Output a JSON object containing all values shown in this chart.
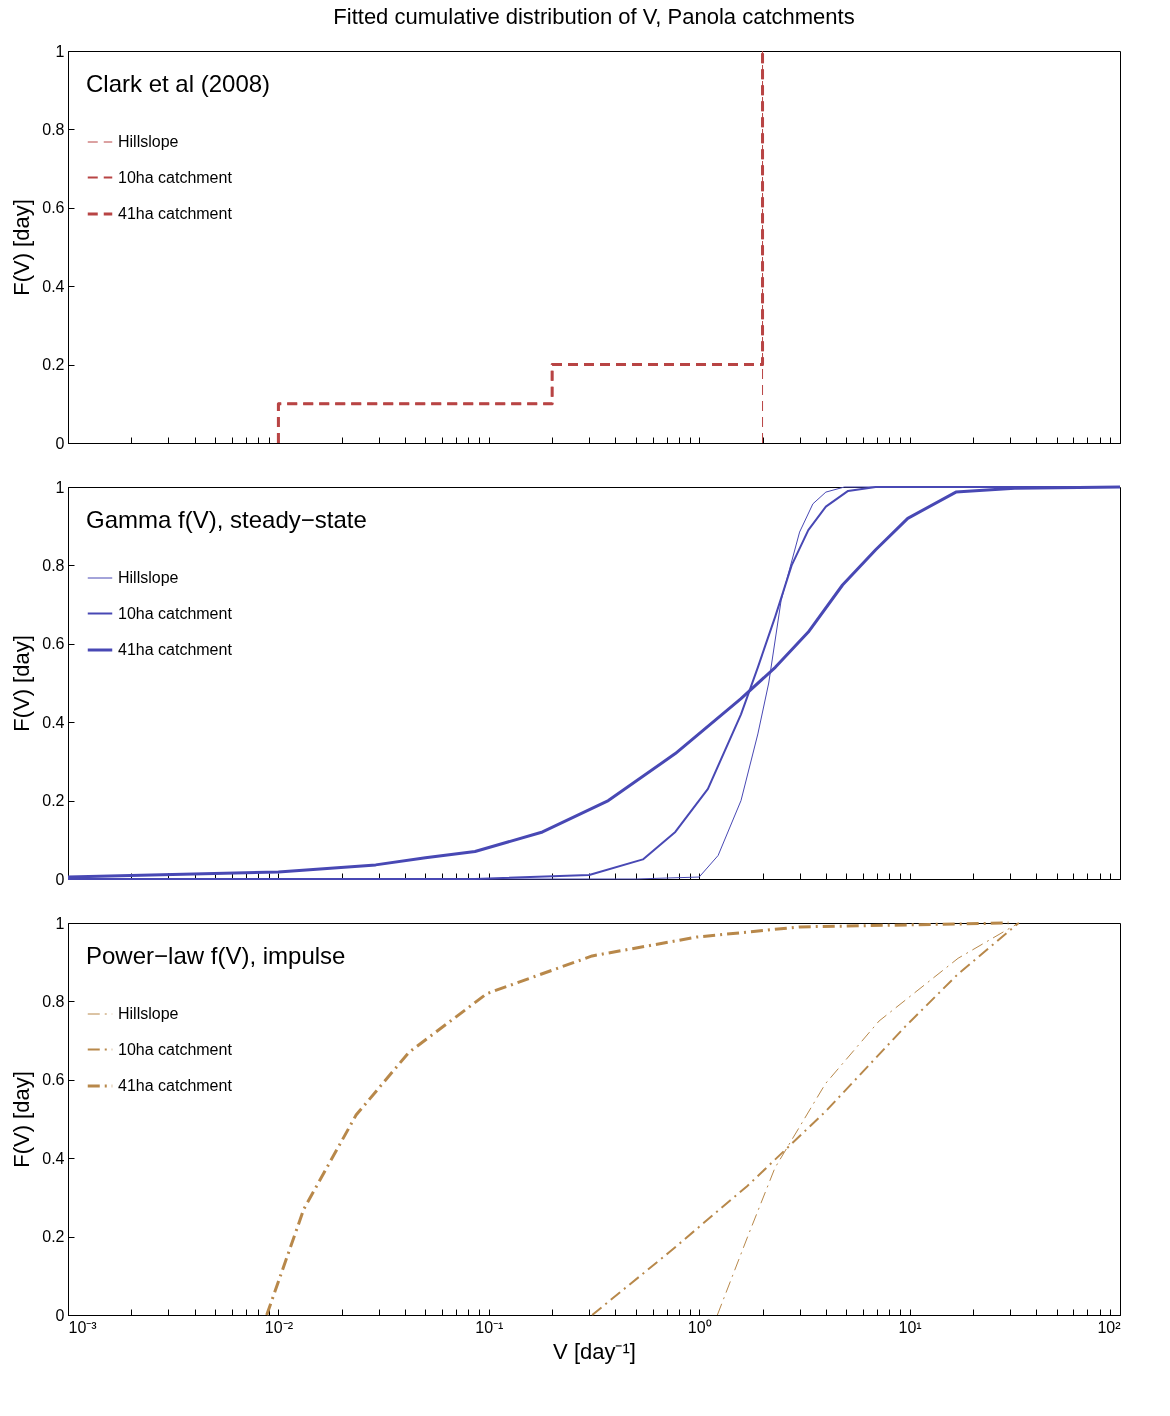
{
  "chart_data": [
    {
      "type": "step",
      "title": "Fitted cumulative distribution of V, Panola catchments",
      "ylabel": "F(V) [day]",
      "annotations": [
        "Clark et al (2008)"
      ],
      "xlim": [
        0.001,
        100
      ],
      "ylim": [
        0,
        1
      ],
      "log": "x",
      "grid": false,
      "legend": "top left",
      "tick_labels": "y",
      "line_style": "dashed",
      "marker": "none",
      "xticks": [
        0.001,
        0.002,
        0.003,
        0.004,
        0.005,
        0.006,
        0.007,
        0.008,
        0.009,
        0.01,
        0.02,
        0.03,
        0.04,
        0.05,
        0.06,
        0.07,
        0.08,
        0.09,
        0.1,
        0.2,
        0.3,
        0.4,
        0.5,
        0.6,
        0.7,
        0.8,
        0.9,
        1,
        2,
        3,
        4,
        5,
        6,
        7,
        8,
        9,
        10,
        20,
        30,
        40,
        50,
        60,
        70,
        80,
        90,
        100
      ],
      "yticks": [
        0,
        0.2,
        0.4,
        0.6,
        0.8,
        1
      ],
      "series": [
        {
          "name": "Hillslope",
          "color": "#b84444",
          "x": [
            2,
            2
          ],
          "values": [
            0,
            1
          ]
        },
        {
          "name": "10ha catchment",
          "color": "#b84444",
          "x": [
            0.01,
            0.01,
            0.2,
            0.2,
            2,
            2
          ],
          "values": [
            0,
            0.1,
            0.1,
            0.2,
            0.2,
            1
          ]
        },
        {
          "name": "41ha catchment",
          "color": "#b84444",
          "x": [
            0.01,
            0.01,
            0.2,
            0.2,
            2,
            2
          ],
          "values": [
            0,
            0.1,
            0.1,
            0.2,
            0.2,
            1
          ]
        }
      ]
    },
    {
      "type": "line",
      "ylabel": "F(V) [day]",
      "annotations": [
        "Gamma f(V), steady−state"
      ],
      "xlim": [
        0.001,
        100
      ],
      "ylim": [
        0,
        1
      ],
      "log": "x",
      "grid": false,
      "legend": "top left",
      "tick_labels": "y",
      "line_style": "solid",
      "marker": "none",
      "xticks": [
        0.001,
        0.002,
        0.003,
        0.004,
        0.005,
        0.006,
        0.007,
        0.008,
        0.009,
        0.01,
        0.02,
        0.03,
        0.04,
        0.05,
        0.06,
        0.07,
        0.08,
        0.09,
        0.1,
        0.2,
        0.3,
        0.4,
        0.5,
        0.6,
        0.7,
        0.8,
        0.9,
        1,
        2,
        3,
        4,
        5,
        6,
        7,
        8,
        9,
        10,
        20,
        30,
        40,
        50,
        60,
        70,
        80,
        90,
        100
      ],
      "yticks": [
        0,
        0.2,
        0.4,
        0.6,
        0.8,
        1
      ],
      "series": [
        {
          "name": "Hillslope",
          "color": "#4848b4",
          "x": [
            0.001,
            0.5,
            1,
            1.23,
            1.58,
            1.9,
            2.14,
            2.45,
            3.0,
            3.47,
            4.0,
            4.9,
            100
          ],
          "values": [
            0,
            0,
            0.005,
            0.06,
            0.2,
            0.37,
            0.5,
            0.71,
            0.885,
            0.957,
            0.987,
            1,
            1
          ]
        },
        {
          "name": "10ha catchment",
          "color": "#4848b4",
          "x": [
            0.001,
            0.086,
            0.3,
            0.54,
            0.77,
            1.1,
            1.58,
            1.9,
            2.3,
            2.75,
            3.3,
            4.0,
            5.1,
            6.9,
            100
          ],
          "values": [
            0,
            0,
            0.01,
            0.05,
            0.12,
            0.23,
            0.42,
            0.54,
            0.67,
            0.8,
            0.89,
            0.95,
            0.99,
            1,
            1
          ]
        },
        {
          "name": "41ha catchment",
          "color": "#4848b4",
          "x": [
            0.001,
            0.01,
            0.029,
            0.05,
            0.086,
            0.18,
            0.37,
            0.77,
            1.58,
            2.3,
            3.3,
            4.8,
            6.9,
            9.8,
            16.6,
            31.6,
            100
          ],
          "values": [
            0.005,
            0.018,
            0.036,
            0.054,
            0.07,
            0.12,
            0.2,
            0.32,
            0.46,
            0.54,
            0.63,
            0.75,
            0.84,
            0.92,
            0.987,
            0.997,
            1
          ]
        }
      ]
    },
    {
      "type": "line",
      "xlabel": "V [day⁻¹]",
      "ylabel": "F(V) [day]",
      "annotations": [
        "Power−law f(V), impulse"
      ],
      "xlim": [
        0.001,
        100
      ],
      "ylim": [
        0,
        1
      ],
      "log": "x",
      "grid": false,
      "legend": "top left",
      "line_style": "dashdot",
      "marker": "none",
      "xticks": [
        {
          "value": 0.001,
          "label": "10⁻³"
        },
        {
          "value": 0.002,
          "label": null
        },
        {
          "value": 0.003,
          "label": null
        },
        {
          "value": 0.004,
          "label": null
        },
        {
          "value": 0.005,
          "label": null
        },
        {
          "value": 0.006,
          "label": null
        },
        {
          "value": 0.007,
          "label": null
        },
        {
          "value": 0.008,
          "label": null
        },
        {
          "value": 0.009,
          "label": null
        },
        {
          "value": 0.01,
          "label": "10⁻²"
        },
        {
          "value": 0.02,
          "label": null
        },
        {
          "value": 0.03,
          "label": null
        },
        {
          "value": 0.04,
          "label": null
        },
        {
          "value": 0.05,
          "label": null
        },
        {
          "value": 0.06,
          "label": null
        },
        {
          "value": 0.07,
          "label": null
        },
        {
          "value": 0.08,
          "label": null
        },
        {
          "value": 0.09,
          "label": null
        },
        {
          "value": 0.1,
          "label": "10⁻¹"
        },
        {
          "value": 0.2,
          "label": null
        },
        {
          "value": 0.3,
          "label": null
        },
        {
          "value": 0.4,
          "label": null
        },
        {
          "value": 0.5,
          "label": null
        },
        {
          "value": 0.6,
          "label": null
        },
        {
          "value": 0.7,
          "label": null
        },
        {
          "value": 0.8,
          "label": null
        },
        {
          "value": 0.9,
          "label": null
        },
        {
          "value": 1,
          "label": "10⁰"
        },
        {
          "value": 2,
          "label": null
        },
        {
          "value": 3,
          "label": null
        },
        {
          "value": 4,
          "label": null
        },
        {
          "value": 5,
          "label": null
        },
        {
          "value": 6,
          "label": null
        },
        {
          "value": 7,
          "label": null
        },
        {
          "value": 8,
          "label": null
        },
        {
          "value": 9,
          "label": null
        },
        {
          "value": 10,
          "label": "10¹"
        },
        {
          "value": 20,
          "label": null
        },
        {
          "value": 30,
          "label": null
        },
        {
          "value": 40,
          "label": null
        },
        {
          "value": 50,
          "label": null
        },
        {
          "value": 60,
          "label": null
        },
        {
          "value": 70,
          "label": null
        },
        {
          "value": 80,
          "label": null
        },
        {
          "value": 90,
          "label": null
        },
        {
          "value": 100,
          "label": "10²"
        }
      ],
      "yticks": [
        0,
        0.2,
        0.4,
        0.6,
        0.8,
        1
      ],
      "series": [
        {
          "name": "Hillslope",
          "color": "#b8884a",
          "x": [
            1.22,
            1.7,
            2.29,
            3.98,
            7.16,
            17,
            33
          ],
          "values": [
            0,
            0.2,
            0.375,
            0.59,
            0.75,
            0.91,
            1
          ]
        },
        {
          "name": "10ha catchment",
          "color": "#b8884a",
          "x": [
            0.31,
            0.72,
            1.7,
            4.0,
            9.5,
            17,
            33
          ],
          "values": [
            0,
            0.16,
            0.33,
            0.52,
            0.735,
            0.87,
            1
          ]
        },
        {
          "name": "41ha catchment",
          "color": "#b8884a",
          "x": [
            0.0088,
            0.0132,
            0.0234,
            0.0417,
            0.098,
            0.31,
            0.97,
            3.0,
            29.5
          ],
          "values": [
            0,
            0.27,
            0.51,
            0.67,
            0.82,
            0.916,
            0.964,
            0.99,
            1
          ]
        }
      ]
    }
  ]
}
